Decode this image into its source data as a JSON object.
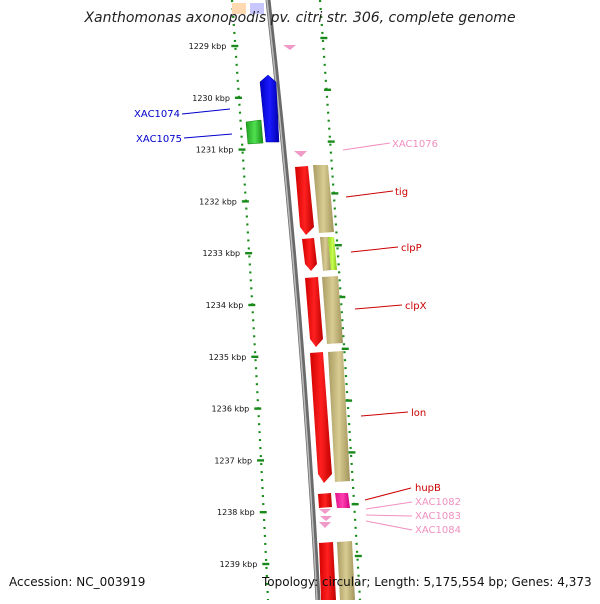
{
  "title": "Xanthomonas axonopodis pv. citri str. 306, complete genome",
  "accession": "Accession: NC_003919",
  "topology": "Topology: circular; Length: 5,175,554 bp; Genes: 4,373",
  "ticks": [
    {
      "label": "1229 kbp",
      "kbp": 1229
    },
    {
      "label": "1230 kbp",
      "kbp": 1230
    },
    {
      "label": "1231 kbp",
      "kbp": 1231
    },
    {
      "label": "1232 kbp",
      "kbp": 1232
    },
    {
      "label": "1233 kbp",
      "kbp": 1233
    },
    {
      "label": "1234 kbp",
      "kbp": 1234
    },
    {
      "label": "1235 kbp",
      "kbp": 1235
    },
    {
      "label": "1236 kbp",
      "kbp": 1236
    },
    {
      "label": "1237 kbp",
      "kbp": 1237
    },
    {
      "label": "1238 kbp",
      "kbp": 1238
    },
    {
      "label": "1239 kbp",
      "kbp": 1239
    }
  ],
  "genes_left": [
    {
      "label": "XAC1074",
      "color": "#0000cc"
    },
    {
      "label": "XAC1075",
      "color": "#0000cc"
    }
  ],
  "genes_right": [
    {
      "label": "XAC1076",
      "color": "#f090c0"
    },
    {
      "label": "tig",
      "color": "#cc0000"
    },
    {
      "label": "clpP",
      "color": "#cc0000"
    },
    {
      "label": "clpX",
      "color": "#cc0000"
    },
    {
      "label": "lon",
      "color": "#cc0000"
    },
    {
      "label": "hupB",
      "color": "#cc0000"
    },
    {
      "label": "XAC1082",
      "color": "#f090c0"
    },
    {
      "label": "XAC1083",
      "color": "#f090c0"
    },
    {
      "label": "XAC1084",
      "color": "#f090c0"
    }
  ]
}
